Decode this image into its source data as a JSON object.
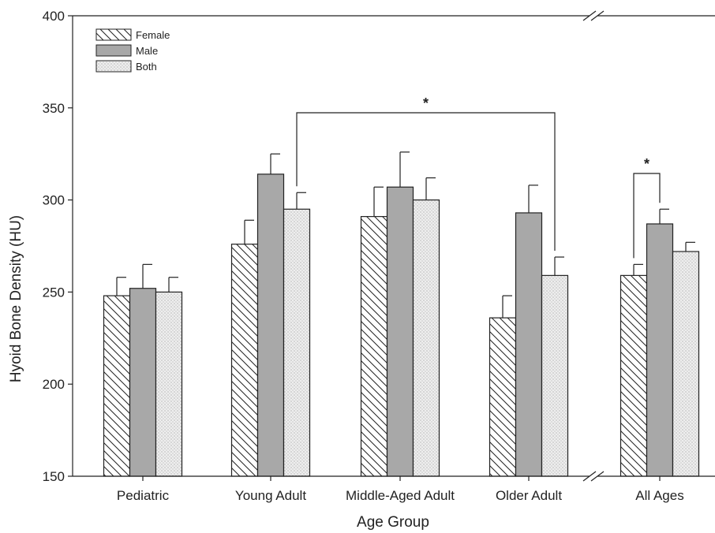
{
  "chart_data": {
    "type": "bar",
    "xlabel": "Age Group",
    "ylabel": "Hyoid Bone Density (HU)",
    "ylim": [
      150,
      400
    ],
    "yticks": [
      "150",
      "200",
      "250",
      "300",
      "350",
      "400"
    ],
    "categories": [
      "Pediatric",
      "Young Adult",
      "Middle-Aged Adult",
      "Older Adult",
      "All Ages"
    ],
    "series": [
      {
        "name": "Female",
        "values": [
          248,
          276,
          291,
          236,
          259
        ],
        "errors": [
          10,
          13,
          16,
          12,
          6
        ],
        "pattern": "diagonal-hatch",
        "color": "#ffffff"
      },
      {
        "name": "Male",
        "values": [
          252,
          314,
          307,
          293,
          287
        ],
        "errors": [
          13,
          11,
          19,
          15,
          8
        ],
        "pattern": "solid",
        "color": "#a8a8a8"
      },
      {
        "name": "Both",
        "values": [
          250,
          295,
          300,
          259,
          272
        ],
        "errors": [
          8,
          9,
          12,
          10,
          5
        ],
        "pattern": "dots",
        "color": "#eeeeee"
      }
    ],
    "legend_position": "top-left",
    "grid": false,
    "axis_break": "between Older Adult and All Ages",
    "annotations": [
      {
        "text": "*",
        "between": "Young Adult Both and Older Adult Both"
      },
      {
        "text": "*",
        "between": "All Ages Female and All Ages Male"
      }
    ]
  }
}
